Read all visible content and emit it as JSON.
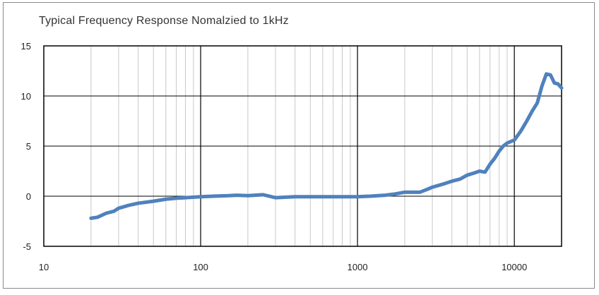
{
  "chart_data": {
    "type": "line",
    "title": "Typical Frequency Response Nomalzied to 1kHz",
    "xlabel": "",
    "ylabel": "",
    "xscale": "log",
    "xlim": [
      10,
      20000
    ],
    "ylim": [
      -5,
      15
    ],
    "x_ticks": [
      10,
      100,
      1000,
      10000
    ],
    "x_tick_labels": [
      "10",
      "100",
      "1000",
      "10000"
    ],
    "y_ticks": [
      -5,
      0,
      5,
      10,
      15
    ],
    "y_tick_labels": [
      "-5",
      "0",
      "5",
      "10",
      "15"
    ],
    "grid": "major and minor vertical gridlines (log), horizontal at y-ticks",
    "legend": "none",
    "series": [
      {
        "color": "#4f81bd",
        "x": [
          20,
          22,
          25,
          28,
          30,
          35,
          40,
          50,
          60,
          70,
          80,
          90,
          100,
          120,
          150,
          170,
          200,
          250,
          300,
          400,
          500,
          600,
          800,
          1000,
          1200,
          1500,
          1700,
          2000,
          2500,
          2800,
          3000,
          3500,
          4000,
          4500,
          5000,
          5500,
          6000,
          6500,
          7000,
          7500,
          8000,
          8500,
          9000,
          10000,
          11000,
          12000,
          13000,
          14000,
          15000,
          16000,
          17000,
          18000,
          19000,
          20000
        ],
        "y": [
          -2.2,
          -2.1,
          -1.7,
          -1.5,
          -1.2,
          -0.9,
          -0.7,
          -0.5,
          -0.3,
          -0.2,
          -0.15,
          -0.1,
          -0.05,
          0.0,
          0.05,
          0.1,
          0.05,
          0.15,
          -0.15,
          -0.05,
          -0.05,
          -0.05,
          -0.05,
          -0.05,
          0.0,
          0.1,
          0.2,
          0.4,
          0.4,
          0.7,
          0.9,
          1.2,
          1.5,
          1.7,
          2.1,
          2.3,
          2.5,
          2.4,
          3.2,
          3.8,
          4.5,
          5.0,
          5.3,
          5.6,
          6.5,
          7.5,
          8.5,
          9.3,
          11.0,
          12.2,
          12.1,
          11.3,
          11.2,
          10.8
        ]
      }
    ]
  }
}
